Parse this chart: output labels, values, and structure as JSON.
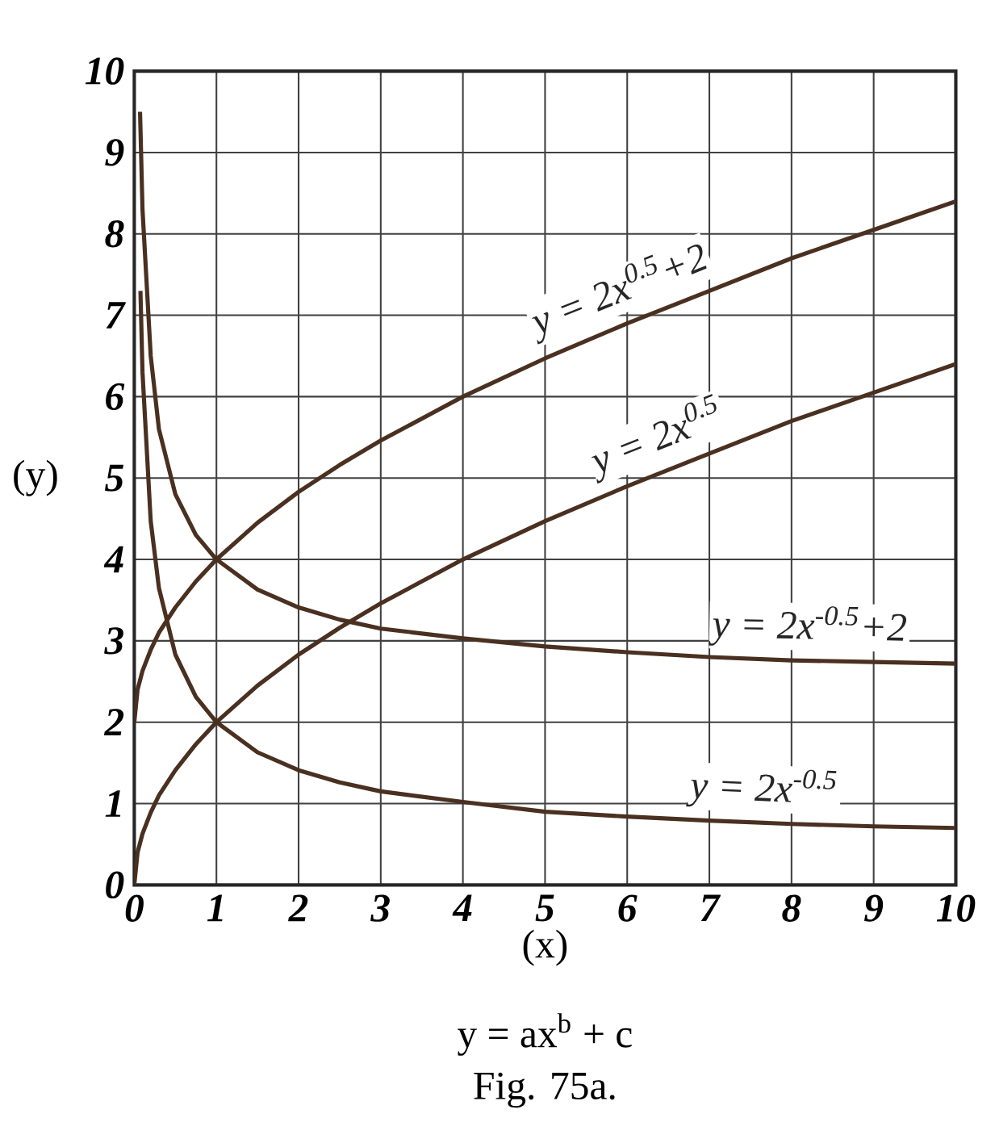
{
  "chart_data": {
    "type": "line",
    "xlabel": "(x)",
    "ylabel": "(y)",
    "xlim": [
      0,
      10
    ],
    "ylim": [
      0,
      10
    ],
    "xticks": [
      0,
      1,
      2,
      3,
      4,
      5,
      6,
      7,
      8,
      9,
      10
    ],
    "yticks": [
      0,
      1,
      2,
      3,
      4,
      5,
      6,
      7,
      8,
      9,
      10
    ],
    "grid": true,
    "legend": false,
    "marker": "none",
    "line_style": "solid",
    "series": [
      {
        "name": "y = 2x$^{0.5}$+2",
        "color": "#4a3020",
        "x": [
          0,
          0.04,
          0.1,
          0.2,
          0.3,
          0.5,
          0.75,
          1,
          1.5,
          2,
          2.5,
          3,
          4,
          5,
          6,
          7,
          8,
          9,
          10
        ],
        "values": [
          2,
          2.4,
          2.63,
          2.89,
          3.1,
          3.41,
          3.73,
          4,
          4.45,
          4.83,
          5.16,
          5.46,
          6,
          6.47,
          6.9,
          7.3,
          7.7,
          8.05,
          8.4
        ]
      },
      {
        "name": "y = 2x$^{0.5}$",
        "color": "#4a3020",
        "x": [
          0,
          0.04,
          0.1,
          0.2,
          0.3,
          0.5,
          0.75,
          1,
          1.5,
          2,
          2.5,
          3,
          4,
          5,
          6,
          7,
          8,
          9,
          10
        ],
        "values": [
          0,
          0.4,
          0.63,
          0.89,
          1.1,
          1.41,
          1.73,
          2,
          2.45,
          2.83,
          3.16,
          3.46,
          4,
          4.47,
          4.9,
          5.3,
          5.7,
          6.05,
          6.4
        ]
      },
      {
        "name": "y = 2x$^{-0.5}$+2",
        "color": "#4a3020",
        "x": [
          0.07,
          0.1,
          0.2,
          0.3,
          0.5,
          0.75,
          1,
          1.5,
          2,
          2.5,
          3,
          4,
          5,
          6,
          7,
          8,
          9,
          10
        ],
        "values": [
          9.5,
          8.3,
          6.5,
          5.6,
          4.8,
          4.3,
          4,
          3.63,
          3.41,
          3.26,
          3.15,
          3.03,
          2.93,
          2.86,
          2.8,
          2.76,
          2.74,
          2.72
        ]
      },
      {
        "name": "y = 2x$^{-0.5}$",
        "color": "#4a3020",
        "x": [
          0.075,
          0.1,
          0.2,
          0.3,
          0.5,
          0.75,
          1,
          1.5,
          2,
          2.5,
          3,
          4,
          5,
          6,
          7,
          8,
          9,
          10
        ],
        "values": [
          7.3,
          6.3,
          4.47,
          3.65,
          2.83,
          2.31,
          2,
          1.63,
          1.41,
          1.26,
          1.15,
          1.02,
          0.9,
          0.84,
          0.79,
          0.75,
          0.72,
          0.7
        ]
      }
    ],
    "annotations": [
      "y = ax$^{b}$ + c",
      "Fig. 75a."
    ]
  }
}
